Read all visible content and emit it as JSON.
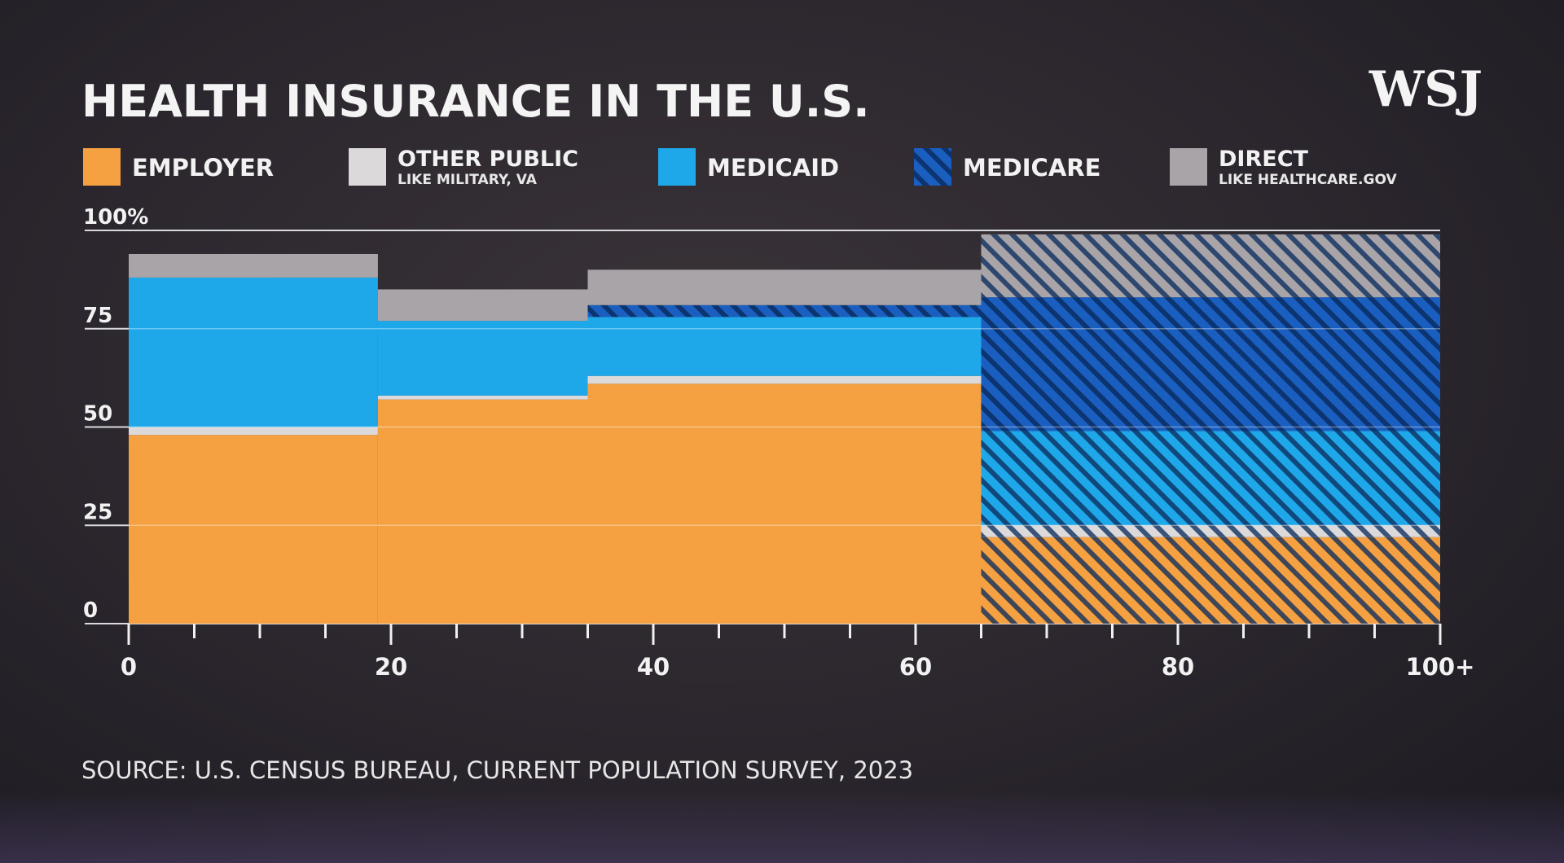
{
  "header": {
    "title": "HEALTH INSURANCE IN THE U.S.",
    "logo": "WSJ"
  },
  "legend": [
    {
      "key": "employer",
      "label": "EMPLOYER",
      "sub": "",
      "color": "#f5a142",
      "pattern": "solid"
    },
    {
      "key": "other_public",
      "label": "OTHER PUBLIC",
      "sub": "LIKE MILITARY, VA",
      "color": "#dcd9db",
      "pattern": "solid"
    },
    {
      "key": "medicaid",
      "label": "MEDICAID",
      "sub": "",
      "color": "#1ea8ea",
      "pattern": "solid"
    },
    {
      "key": "medicare",
      "label": "MEDICARE",
      "sub": "",
      "color": "#1a5fc0",
      "pattern": "hatch"
    },
    {
      "key": "direct",
      "label": "DIRECT",
      "sub": "LIKE HEALTHCARE.GOV",
      "color": "#a9a4a8",
      "pattern": "solid"
    }
  ],
  "chart_data": {
    "type": "area",
    "title": "HEALTH INSURANCE IN THE U.S.",
    "xlabel": "",
    "ylabel": "",
    "xlim": [
      0,
      100
    ],
    "ylim": [
      0,
      100
    ],
    "x_ticks": [
      "0",
      "20",
      "40",
      "60",
      "80",
      "100+"
    ],
    "y_ticks": [
      "0",
      "25",
      "50",
      "75",
      "100%"
    ],
    "grid": true,
    "legend_position": "top",
    "age_groups": [
      {
        "x_start": 0,
        "x_end": 19,
        "layers": [
          {
            "series": "employer",
            "from": 0,
            "to": 48
          },
          {
            "series": "other_public",
            "from": 48,
            "to": 50
          },
          {
            "series": "medicaid",
            "from": 50,
            "to": 88
          },
          {
            "series": "direct",
            "from": 88,
            "to": 94
          }
        ]
      },
      {
        "x_start": 19,
        "x_end": 35,
        "layers": [
          {
            "series": "employer",
            "from": 0,
            "to": 57
          },
          {
            "series": "other_public",
            "from": 57,
            "to": 58
          },
          {
            "series": "medicaid",
            "from": 58,
            "to": 77
          },
          {
            "series": "direct",
            "from": 77,
            "to": 85
          }
        ]
      },
      {
        "x_start": 35,
        "x_end": 65,
        "layers": [
          {
            "series": "employer",
            "from": 0,
            "to": 61
          },
          {
            "series": "other_public",
            "from": 61,
            "to": 63
          },
          {
            "series": "medicaid",
            "from": 63,
            "to": 78
          },
          {
            "series": "medicare",
            "from": 78,
            "to": 81
          },
          {
            "series": "direct",
            "from": 81,
            "to": 90
          }
        ]
      },
      {
        "x_start": 65,
        "x_end": 100,
        "layers": [
          {
            "series": "employer",
            "from": 0,
            "to": 22,
            "overlap": "medicare"
          },
          {
            "series": "other_public",
            "from": 22,
            "to": 25,
            "overlap": "medicare"
          },
          {
            "series": "medicaid",
            "from": 25,
            "to": 49,
            "overlap": "medicare"
          },
          {
            "series": "medicare",
            "from": 49,
            "to": 83
          },
          {
            "series": "direct",
            "from": 83,
            "to": 99,
            "overlap": "medicare"
          }
        ]
      }
    ]
  },
  "footer": {
    "source": "SOURCE: U.S. CENSUS BUREAU, CURRENT POPULATION SURVEY, 2023"
  }
}
